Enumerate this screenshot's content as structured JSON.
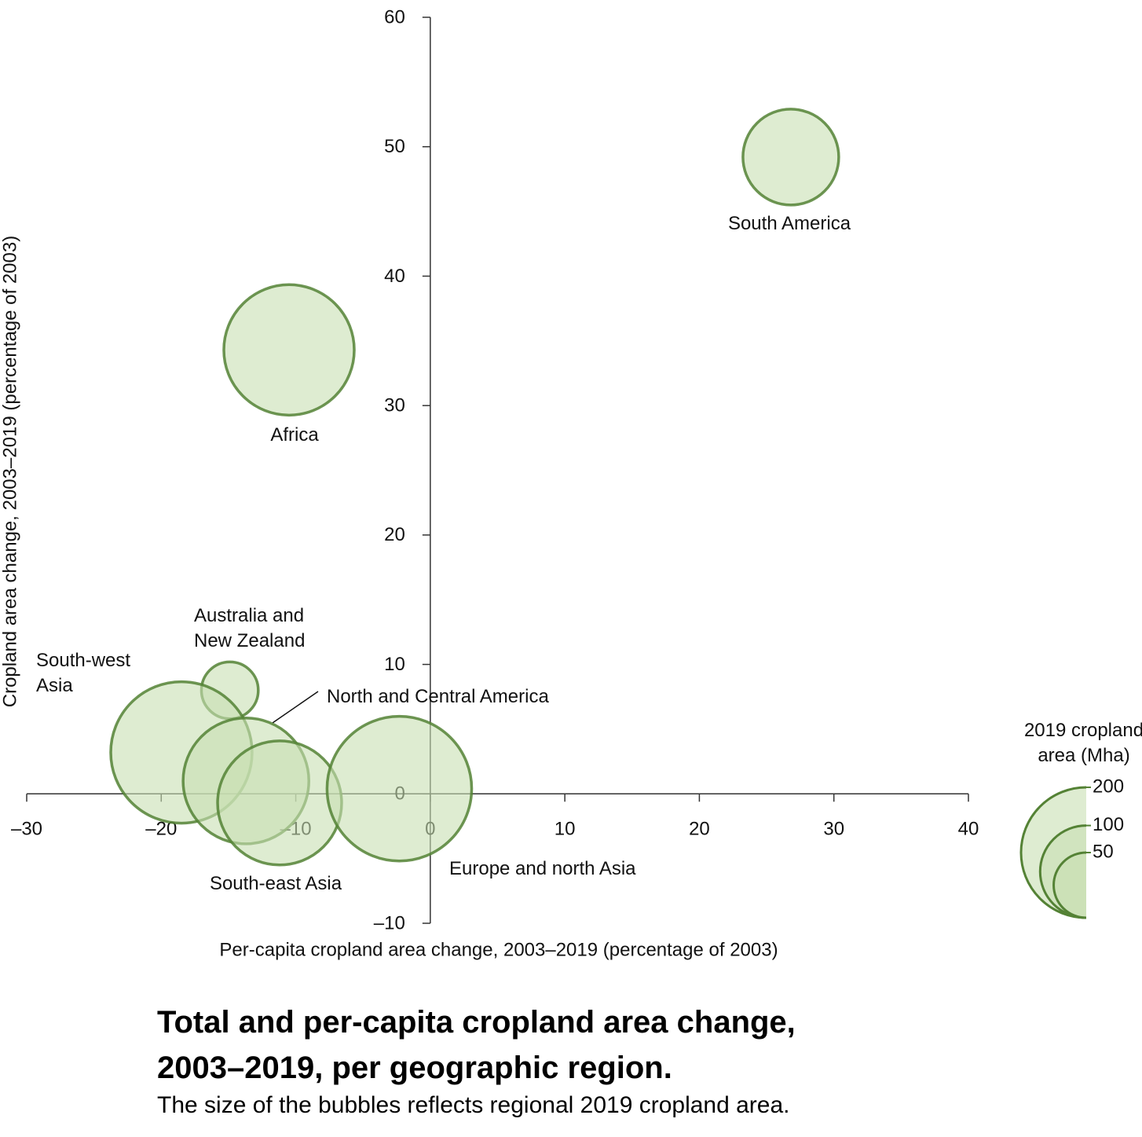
{
  "chart_data": {
    "type": "bubble",
    "x_label": "Per-capita cropland area change, 2003–2019 (percentage of 2003)",
    "y_label": "Cropland area change, 2003–2019 (percentage of 2003)",
    "xlim": [
      -30,
      40
    ],
    "xticks": [
      {
        "value": -30,
        "label": "–30"
      },
      {
        "value": -20,
        "label": "–20"
      },
      {
        "value": -10,
        "label": "–10"
      },
      0,
      10,
      20,
      30,
      40
    ],
    "ylim": [
      -10,
      60
    ],
    "yticks": [
      {
        "value": -10,
        "label": "–10"
      },
      0,
      10,
      20,
      30,
      40,
      50,
      60
    ],
    "series": [
      {
        "color": "#548235",
        "fill": "#c8e0b2",
        "labels": [
          "South America",
          "Africa",
          "Australia and New Zealand",
          "South-west Asia",
          "North and Central America",
          "South-east Asia",
          "Europe and north Asia"
        ],
        "x": [
          26.8,
          -10.5,
          -14.9,
          -18.5,
          -13.7,
          -11.2,
          -2.3
        ],
        "values": [
          49.2,
          34.3,
          8.0,
          3.2,
          1.0,
          -0.7,
          0.4
        ],
        "sizes": [
          108,
          200,
          38,
          235,
          186,
          181,
          246
        ]
      }
    ],
    "size_legend": {
      "title": "2019 cropland area (Mha)",
      "values": [
        200,
        100,
        50
      ]
    },
    "title": "Total and per-capita cropland area change, 2003–2019, per geographic region.",
    "subtitle": "The size of the bubbles reflects regional 2019 cropland area."
  }
}
